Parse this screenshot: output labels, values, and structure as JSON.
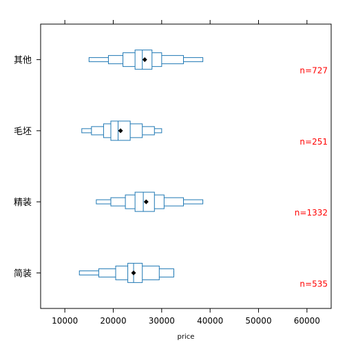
{
  "chart_data": {
    "type": "boxplot",
    "xlabel": "price",
    "xlim": [
      5000,
      65000
    ],
    "xticks": [
      10000,
      20000,
      30000,
      40000,
      50000,
      60000
    ],
    "xtick_labels": [
      "10000",
      "20000",
      "30000",
      "40000",
      "50000",
      "60000"
    ],
    "count_color": "#ff0000",
    "box_color": "#1f78b4",
    "grid": false,
    "categories": [
      {
        "name": "其他",
        "n_label": "n=727",
        "median": 26000,
        "mean": 26500,
        "steps": [
          [
            22000,
            30000
          ],
          [
            19000,
            34500
          ],
          [
            15000,
            38500
          ]
        ],
        "inner": [
          24500,
          28000
        ]
      },
      {
        "name": "毛坯",
        "n_label": "n=251",
        "median": 21000,
        "mean": 21500,
        "steps": [
          [
            18000,
            26000
          ],
          [
            15500,
            28500
          ],
          [
            13500,
            30000
          ]
        ],
        "inner": [
          19500,
          23500
        ]
      },
      {
        "name": "精装",
        "n_label": "n=1332",
        "median": 26200,
        "mean": 26800,
        "steps": [
          [
            22500,
            30500
          ],
          [
            19500,
            34500
          ],
          [
            16500,
            38500
          ]
        ],
        "inner": [
          24500,
          28500
        ]
      },
      {
        "name": "简装",
        "n_label": "n=535",
        "median": 24200,
        "mean": 24200,
        "steps": [
          [
            20500,
            29500
          ],
          [
            17000,
            32500
          ],
          [
            13000,
            32500
          ]
        ],
        "inner": [
          23000,
          26000
        ]
      }
    ]
  }
}
